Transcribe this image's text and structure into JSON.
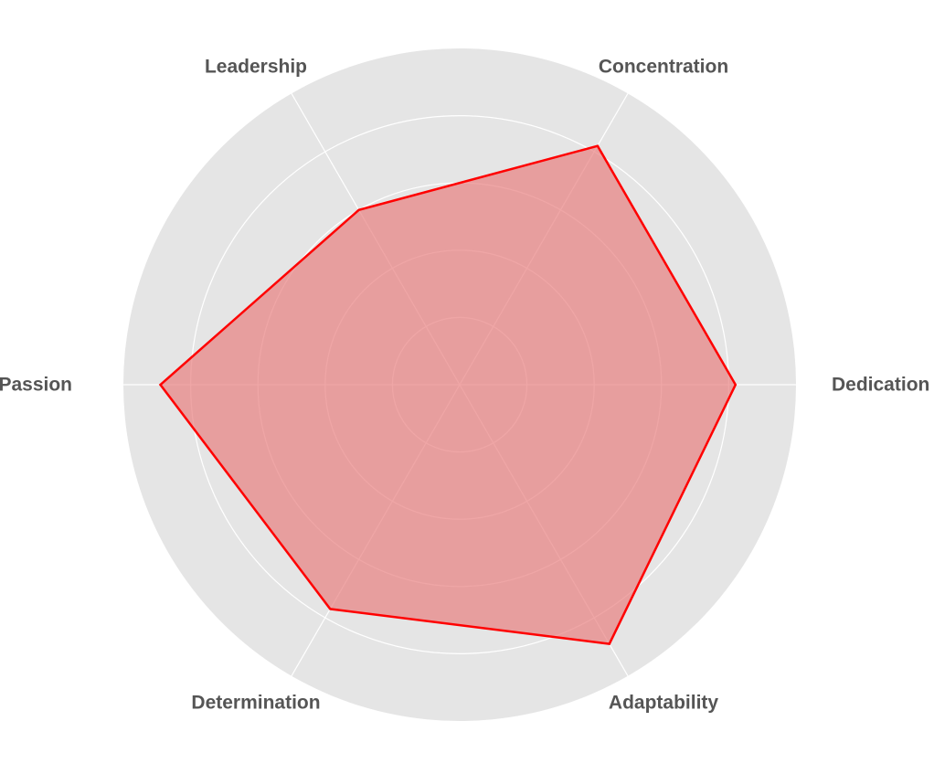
{
  "chart_data": {
    "type": "radar",
    "categories": [
      "Dedication",
      "Concentration",
      "Leadership",
      "Passion",
      "Determination",
      "Adaptability"
    ],
    "series": [
      {
        "values": [
          8.2,
          8.2,
          6.0,
          8.9,
          7.7,
          8.9
        ]
      }
    ],
    "rmax": 10,
    "rticks": [
      2,
      4,
      6,
      8
    ],
    "grid": true,
    "background_color": "#e5e5e5",
    "grid_color": "#ffffff",
    "line_color": "#ff0000",
    "fill_color": "#e88080"
  }
}
